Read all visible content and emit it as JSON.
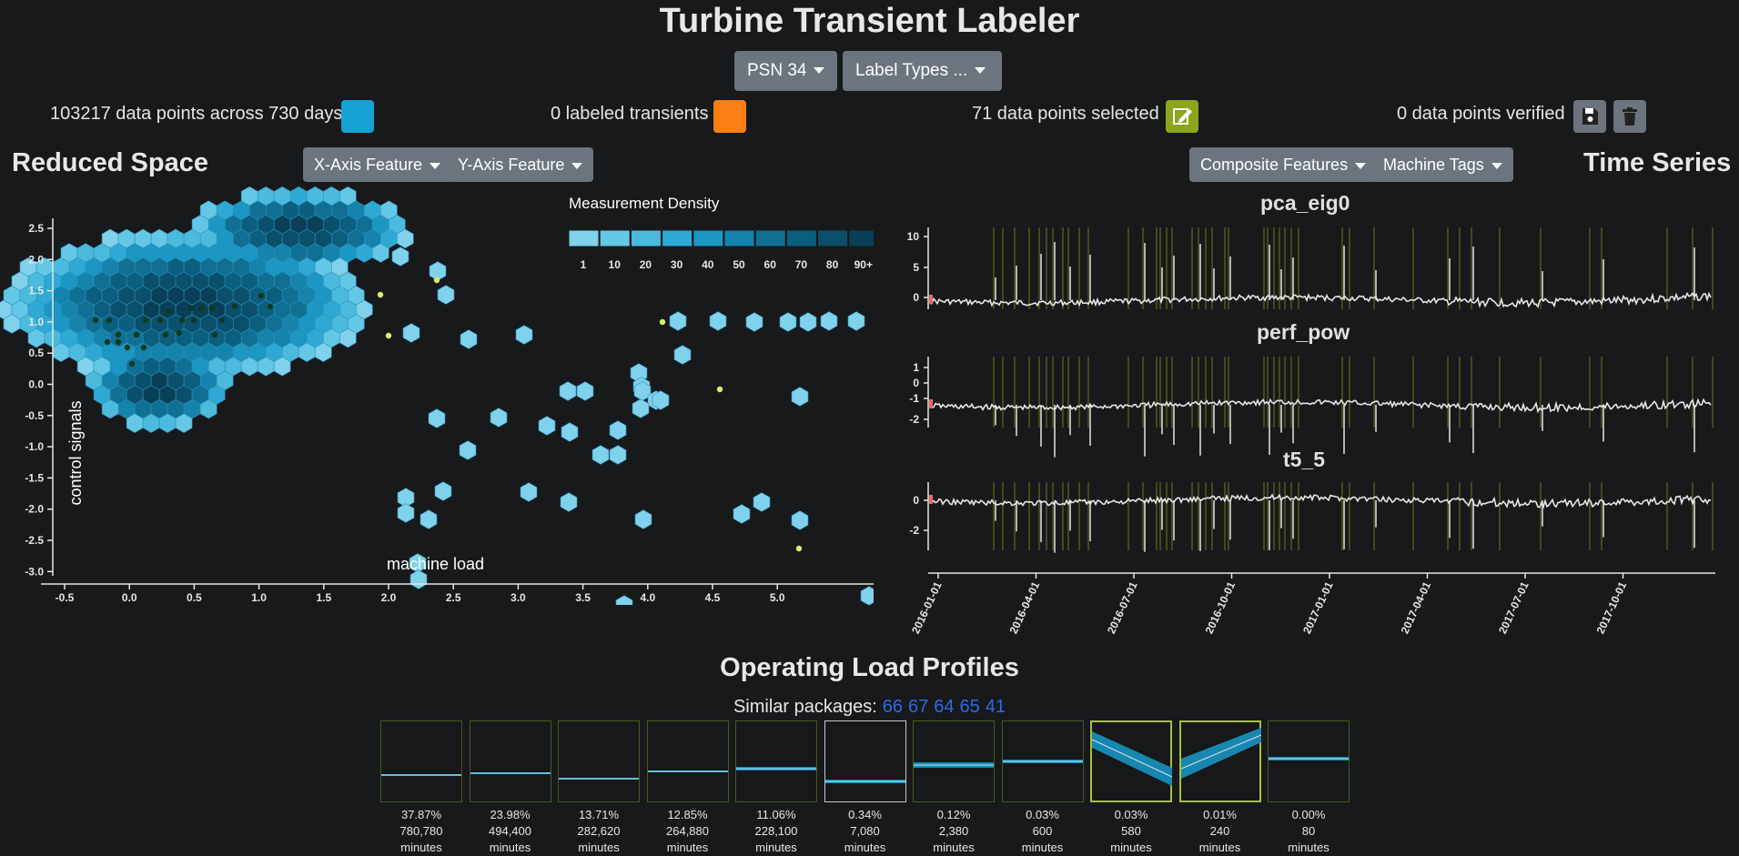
{
  "app": {
    "title": "Turbine Transient Labeler"
  },
  "controls": {
    "psn": "PSN 34",
    "label_types": "Label Types ..."
  },
  "stats": {
    "data_points": "103217 data points across 730 days",
    "labeled": "0 labeled transients",
    "selected": "71 data points selected",
    "verified": "0 data points verified"
  },
  "colors": {
    "data": "#16a2d2",
    "labeled": "#fd7e14",
    "edit": "#8aa61a",
    "verify": "#6c757d"
  },
  "icons": {
    "edit": "edit-icon",
    "save": "save-icon",
    "delete": "trash-icon"
  },
  "reduced_space": {
    "heading": "Reduced Space",
    "x_button": "X-Axis Feature",
    "y_button": "Y-Axis Feature",
    "x_label": "machine load",
    "y_label": "control signals",
    "x_ticks": [
      "-0.5",
      "0.0",
      "0.5",
      "1.0",
      "1.5",
      "2.0",
      "2.5",
      "3.0",
      "3.5",
      "4.0",
      "4.5",
      "5.0"
    ],
    "y_ticks": [
      "2.5",
      "2.0",
      "1.5",
      "1.0",
      "0.5",
      "0.0",
      "-0.5",
      "-1.0",
      "-1.5",
      "-2.0",
      "-2.5",
      "-3.0"
    ],
    "legend_title": "Measurement Density",
    "legend_labels": [
      "1",
      "10",
      "20",
      "30",
      "40",
      "50",
      "60",
      "70",
      "80",
      "90+"
    ],
    "legend_colors": [
      "#7fd1ec",
      "#65c7e6",
      "#4bbadd",
      "#2fa9d3",
      "#1c96c2",
      "#1583ab",
      "#106f93",
      "#0c5e7e",
      "#0a4f6b",
      "#093f57"
    ]
  },
  "time_series": {
    "heading": "Time Series",
    "composite_button": "Composite Features",
    "tags_button": "Machine Tags",
    "charts": [
      {
        "name": "pca_eig0",
        "ticks": [
          "10",
          "5",
          "0"
        ]
      },
      {
        "name": "perf_pow",
        "ticks": [
          "1",
          "0",
          "-1",
          "-2"
        ]
      },
      {
        "name": "t5_5",
        "ticks": [
          "0",
          "-2"
        ]
      }
    ],
    "x_ticks": [
      "2016-01-01",
      "2016-04-01",
      "2016-07-01",
      "2016-10-01",
      "2017-01-01",
      "2017-04-01",
      "2017-07-01",
      "2017-10-01"
    ]
  },
  "profiles": {
    "heading": "Operating Load Profiles",
    "similar_label": "Similar packages:",
    "similar_packages": [
      "66",
      "67",
      "64",
      "65",
      "41"
    ],
    "items": [
      {
        "pct": "37.87%",
        "count": "780,780",
        "unit": "minutes"
      },
      {
        "pct": "23.98%",
        "count": "494,400",
        "unit": "minutes"
      },
      {
        "pct": "13.71%",
        "count": "282,620",
        "unit": "minutes"
      },
      {
        "pct": "12.85%",
        "count": "264,880",
        "unit": "minutes"
      },
      {
        "pct": "11.06%",
        "count": "228,100",
        "unit": "minutes"
      },
      {
        "pct": "0.34%",
        "count": "7,080",
        "unit": "minutes"
      },
      {
        "pct": "0.12%",
        "count": "2,380",
        "unit": "minutes"
      },
      {
        "pct": "0.03%",
        "count": "600",
        "unit": "minutes"
      },
      {
        "pct": "0.03%",
        "count": "580",
        "unit": "minutes"
      },
      {
        "pct": "0.01%",
        "count": "240",
        "unit": "minutes"
      },
      {
        "pct": "0.00%",
        "count": "80",
        "unit": "minutes"
      }
    ]
  }
}
